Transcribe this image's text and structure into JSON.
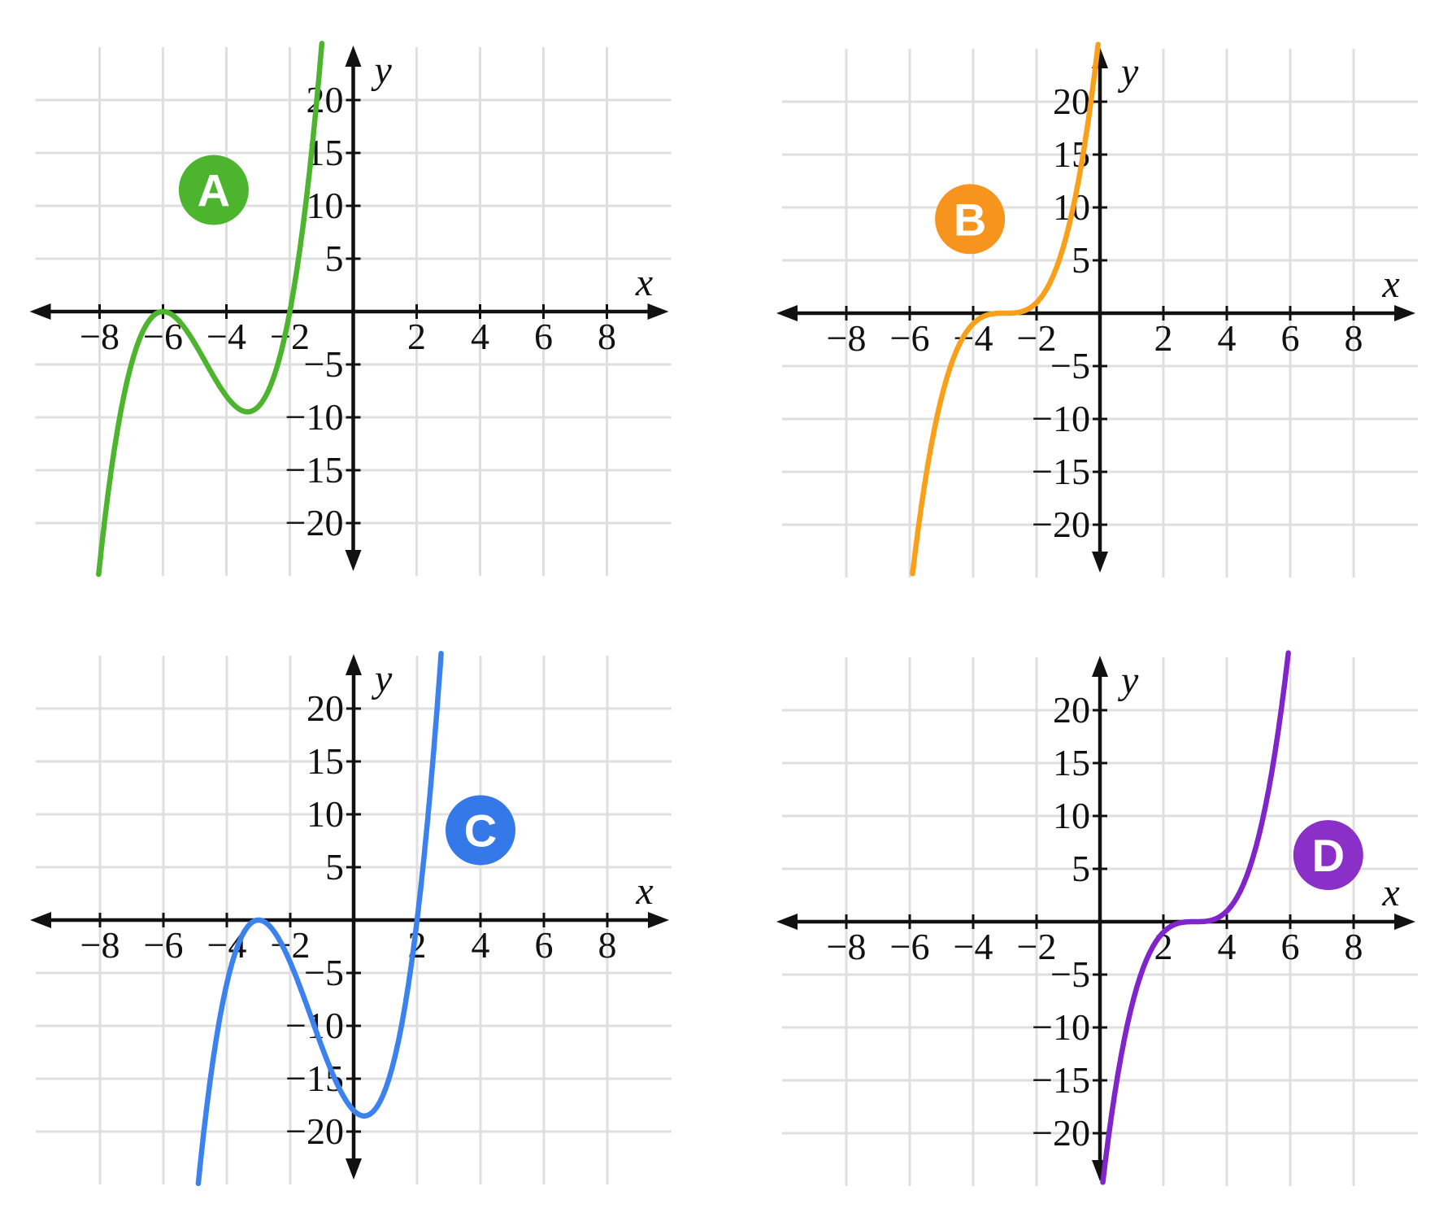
{
  "page": {
    "background": "#ffffff",
    "grid_color": "#dfdfdf",
    "axis_color": "#111111",
    "text_color": "#111111"
  },
  "chart_data": [
    {
      "id": "A",
      "type": "line",
      "badge": {
        "text": "A",
        "color": "#4cb42d",
        "x": -4.4,
        "y": 11.5
      },
      "curve": {
        "color": "#4cb42d",
        "polynomial_coefficients": {
          "a": 1,
          "b": 14,
          "c": 60,
          "d": 72
        },
        "x_intercepts": [
          -6,
          -2
        ],
        "local_max": [
          -6,
          0
        ],
        "local_min": [
          -3.33,
          -9.48
        ]
      },
      "axes": {
        "xlabel": "x",
        "ylabel": "y",
        "xlim": [
          -10.2,
          10.0
        ],
        "ylim": [
          -25,
          25
        ],
        "xticks": [
          -8,
          -6,
          -4,
          -2,
          2,
          4,
          6,
          8
        ],
        "yticks": [
          20,
          15,
          10,
          5,
          -5,
          -10,
          -15,
          -20
        ],
        "x_grid_step": 2,
        "y_grid_step": 5,
        "grid": true
      }
    },
    {
      "id": "B",
      "type": "line",
      "badge": {
        "text": "B",
        "color": "#f7941e",
        "x": -4.1,
        "y": 8.9
      },
      "curve": {
        "color": "#f9a01b",
        "polynomial_coefficients": {
          "a": 1,
          "b": 9,
          "c": 27,
          "d": 27
        },
        "x_intercepts": [
          -3
        ],
        "inflection_point": [
          -3,
          0
        ]
      },
      "axes": {
        "xlabel": "x",
        "ylabel": "y",
        "xlim": [
          -10.2,
          10.0
        ],
        "ylim": [
          -25,
          25
        ],
        "xticks": [
          -8,
          -6,
          -4,
          -2,
          2,
          4,
          6,
          8
        ],
        "yticks": [
          20,
          15,
          10,
          5,
          -5,
          -10,
          -15,
          -20
        ],
        "x_grid_step": 2,
        "y_grid_step": 5,
        "grid": true
      }
    },
    {
      "id": "C",
      "type": "line",
      "badge": {
        "text": "C",
        "color": "#3579e9",
        "x": 4.0,
        "y": 8.5
      },
      "curve": {
        "color": "#3b82ef",
        "polynomial_coefficients": {
          "a": 1,
          "b": 4,
          "c": -3,
          "d": -18
        },
        "x_intercepts": [
          -3,
          2
        ],
        "local_max": [
          -3,
          0
        ],
        "local_min": [
          0.33,
          -18.52
        ]
      },
      "axes": {
        "xlabel": "x",
        "ylabel": "y",
        "xlim": [
          -10.2,
          10.0
        ],
        "ylim": [
          -25,
          25
        ],
        "xticks": [
          -8,
          -6,
          -4,
          -2,
          2,
          4,
          6,
          8
        ],
        "yticks": [
          20,
          15,
          10,
          5,
          -5,
          -10,
          -15,
          -20
        ],
        "x_grid_step": 2,
        "y_grid_step": 5,
        "grid": true
      }
    },
    {
      "id": "D",
      "type": "line",
      "badge": {
        "text": "D",
        "color": "#8a2fc8",
        "x": 7.2,
        "y": 6.3
      },
      "curve": {
        "color": "#7f25c9",
        "polynomial_coefficients": {
          "a": 1,
          "b": -9,
          "c": 27,
          "d": -27
        },
        "x_intercepts": [
          3
        ],
        "inflection_point": [
          3,
          0
        ]
      },
      "axes": {
        "xlabel": "x",
        "ylabel": "y",
        "xlim": [
          -10.2,
          10.0
        ],
        "ylim": [
          -25,
          25
        ],
        "xticks": [
          -8,
          -6,
          -4,
          -2,
          2,
          4,
          6,
          8
        ],
        "yticks": [
          20,
          15,
          10,
          5,
          -5,
          -10,
          -15,
          -20
        ],
        "x_grid_step": 2,
        "y_grid_step": 5,
        "grid": true
      }
    }
  ]
}
